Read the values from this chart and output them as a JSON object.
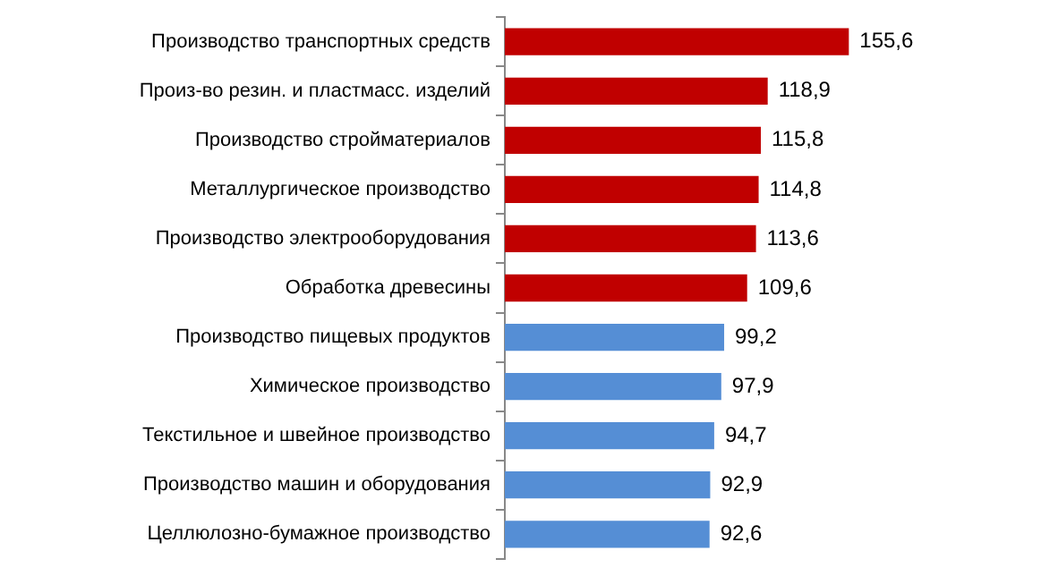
{
  "chart_data": {
    "type": "bar",
    "orientation": "horizontal",
    "categories": [
      "Производство транспортных средств",
      "Произ-во резин. и пластмасс. изделий",
      "Производство стройматериалов",
      "Металлургическое производство",
      "Производство электрооборудования",
      "Обработка древесины",
      "Производство пищевых продуктов",
      "Химическое производство",
      "Текстильное и швейное производство",
      "Производство машин и оборудования",
      "Целлюлозно-бумажное производство"
    ],
    "values": [
      155.6,
      118.9,
      115.8,
      114.8,
      113.6,
      109.6,
      99.2,
      97.9,
      94.7,
      92.9,
      92.6
    ],
    "value_labels": [
      "155,6",
      "118,9",
      "115,8",
      "114,8",
      "113,6",
      "109,6",
      "99,2",
      "97,9",
      "94,7",
      "92,9",
      "92,6"
    ],
    "colors": [
      "#c00000",
      "#c00000",
      "#c00000",
      "#c00000",
      "#c00000",
      "#c00000",
      "#558ed5",
      "#558ed5",
      "#558ed5",
      "#558ed5",
      "#558ed5"
    ],
    "tick_labels": "y",
    "legend": false
  }
}
